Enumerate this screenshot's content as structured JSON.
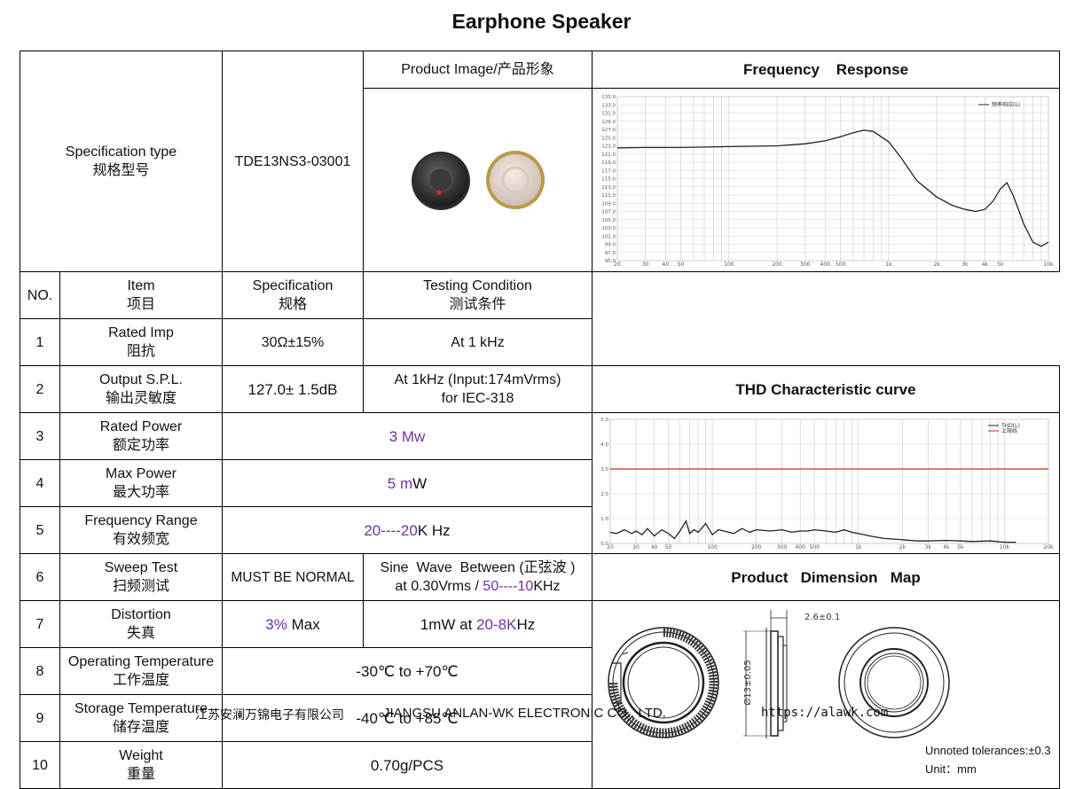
{
  "title": "Earphone Speaker",
  "header": {
    "spec_type_en": "Specification type",
    "spec_type_cn": "规格型号",
    "model": "TDE13NS3-03001",
    "product_image": "Product Image/产品形象",
    "freq_response": "Frequency    Response",
    "thd_curve": "THD Characteristic curve",
    "dimension_map": "Product   Dimension   Map"
  },
  "columns": {
    "no": "NO.",
    "item_en": "Item",
    "item_cn": "项目",
    "spec_en": "Specification",
    "spec_cn": "规格",
    "cond_en": "Testing Condition",
    "cond_cn": "测试条件"
  },
  "rows": [
    {
      "no": "1",
      "item_en": "Rated Imp",
      "item_cn": "阻抗",
      "spec": "30Ω±15%",
      "cond": "At 1 kHz"
    },
    {
      "no": "2",
      "item_en": "Output S.P.L.",
      "item_cn": "输出灵敏度",
      "spec": "127.0± 1.5dB",
      "cond_1": "At 1kHz (Input:174mVrms)",
      "cond_2": "for IEC-318"
    },
    {
      "no": "3",
      "item_en": "Rated Power",
      "item_cn": "额定功率",
      "merged": "3 Mw"
    },
    {
      "no": "4",
      "item_en": "Max Power",
      "item_cn": "最大功率",
      "merged_a": "5 m",
      "merged_b": "W"
    },
    {
      "no": "5",
      "item_en": "Frequency Range",
      "item_cn": "有效频宽",
      "merged_a": "20----20",
      "merged_b": "K Hz"
    },
    {
      "no": "6",
      "item_en": "Sweep Test",
      "item_cn": "扫频测试",
      "spec": "MUST BE NORMAL",
      "cond_1": "Sine  Wave  Between (正弦波 )",
      "cond_2a": "at 0.30Vrms / ",
      "cond_2b": "50----10",
      "cond_2c": "KHz"
    },
    {
      "no": "7",
      "item_en": "Distortion",
      "item_cn": "失真",
      "spec_a": "3%",
      "spec_b": " Max",
      "cond_a": "1mW at ",
      "cond_b": "20-8K",
      "cond_c": "Hz"
    },
    {
      "no": "8",
      "item_en": "Operating Temperature",
      "item_cn": "工作温度",
      "merged": "-30℃ to +70℃"
    },
    {
      "no": "9",
      "item_en": "Storage Temperature",
      "item_cn": "储存温度",
      "merged": "-40℃ to +85℃"
    },
    {
      "no": "10",
      "item_en": "Weight",
      "item_cn": "重量",
      "merged": "0.70g/PCS"
    }
  ],
  "dimension": {
    "thickness": "2.6±0.1",
    "diameter": "Ø13±0.05",
    "tolerance": "Unnoted tolerances:±0.3",
    "unit": "Unit：mm"
  },
  "footer": {
    "company_cn": "江苏安澜万锦电子有限公司",
    "company_en": "JIANGSU ANLAN-WK ELECTRONIC CO., LTD.",
    "url": "https://alawk.com"
  },
  "chart_data": [
    {
      "type": "line",
      "title": "",
      "xscale": "log",
      "xlim": [
        20,
        10000
      ],
      "ylim": [
        95,
        135
      ],
      "x_ticks": [
        "20",
        "30",
        "40",
        "50",
        "100",
        "200",
        "300",
        "400",
        "500",
        "1k",
        "2k",
        "3k",
        "4k",
        "5k",
        "10k"
      ],
      "y_ticks": [
        "135.0",
        "133.0",
        "131.0",
        "129.0",
        "127.0",
        "125.0",
        "123.0",
        "121.0",
        "119.0",
        "117.0",
        "115.0",
        "113.0",
        "111.0",
        "109.0",
        "107.0",
        "105.0",
        "103.0",
        "101.0",
        "99.0",
        "97.0",
        "95.0"
      ],
      "series": [
        {
          "name": "频率响应(L)",
          "color": "#222222",
          "x": [
            20,
            30,
            50,
            100,
            200,
            300,
            400,
            500,
            600,
            700,
            800,
            1000,
            1200,
            1500,
            2000,
            2500,
            3000,
            3500,
            4000,
            4500,
            5000,
            5500,
            6000,
            7000,
            8000,
            9000,
            10000
          ],
          "values": [
            122.5,
            122.6,
            122.6,
            122.8,
            123.0,
            123.5,
            124.2,
            125.2,
            126.2,
            126.8,
            126.5,
            124.0,
            120.0,
            114.5,
            110.5,
            108.5,
            107.5,
            107.0,
            107.5,
            109.5,
            112.5,
            114.0,
            111.0,
            104.0,
            99.5,
            98.5,
            99.5
          ]
        }
      ]
    },
    {
      "type": "line",
      "title": "",
      "xscale": "log",
      "xlim": [
        20,
        20000
      ],
      "ylim": [
        0,
        5
      ],
      "x_ticks": [
        "20",
        "30",
        "40",
        "50",
        "100",
        "200",
        "300",
        "400",
        "500",
        "1k",
        "2k",
        "3k",
        "4k",
        "5k",
        "10k",
        "20k"
      ],
      "y_ticks": [
        "5.0",
        "4.0",
        "3.0",
        "2.0",
        "1.0",
        "0.0"
      ],
      "series": [
        {
          "name": "THD(L)",
          "color": "#222222",
          "x": [
            20,
            22,
            25,
            28,
            30,
            33,
            36,
            40,
            45,
            50,
            55,
            60,
            66,
            70,
            75,
            80,
            90,
            100,
            110,
            120,
            140,
            160,
            180,
            200,
            250,
            300,
            350,
            400,
            450,
            500,
            600,
            700,
            800,
            900,
            1000,
            1200,
            1500,
            2000,
            2500,
            3000,
            4000,
            5000,
            6000,
            8000,
            10000,
            12000
          ],
          "values": [
            0.45,
            0.4,
            0.55,
            0.4,
            0.5,
            0.35,
            0.6,
            0.3,
            0.55,
            0.4,
            0.2,
            0.5,
            0.9,
            0.4,
            0.55,
            0.45,
            0.8,
            0.35,
            0.55,
            0.5,
            0.4,
            0.6,
            0.45,
            0.55,
            0.5,
            0.55,
            0.45,
            0.5,
            0.5,
            0.55,
            0.5,
            0.45,
            0.55,
            0.45,
            0.4,
            0.3,
            0.2,
            0.15,
            0.1,
            0.1,
            0.12,
            0.1,
            0.08,
            0.1,
            0.05,
            0.05
          ]
        },
        {
          "name": "上限线",
          "color": "#d9231a",
          "x": [
            20,
            20000
          ],
          "values": [
            3.0,
            3.0
          ]
        }
      ]
    }
  ]
}
